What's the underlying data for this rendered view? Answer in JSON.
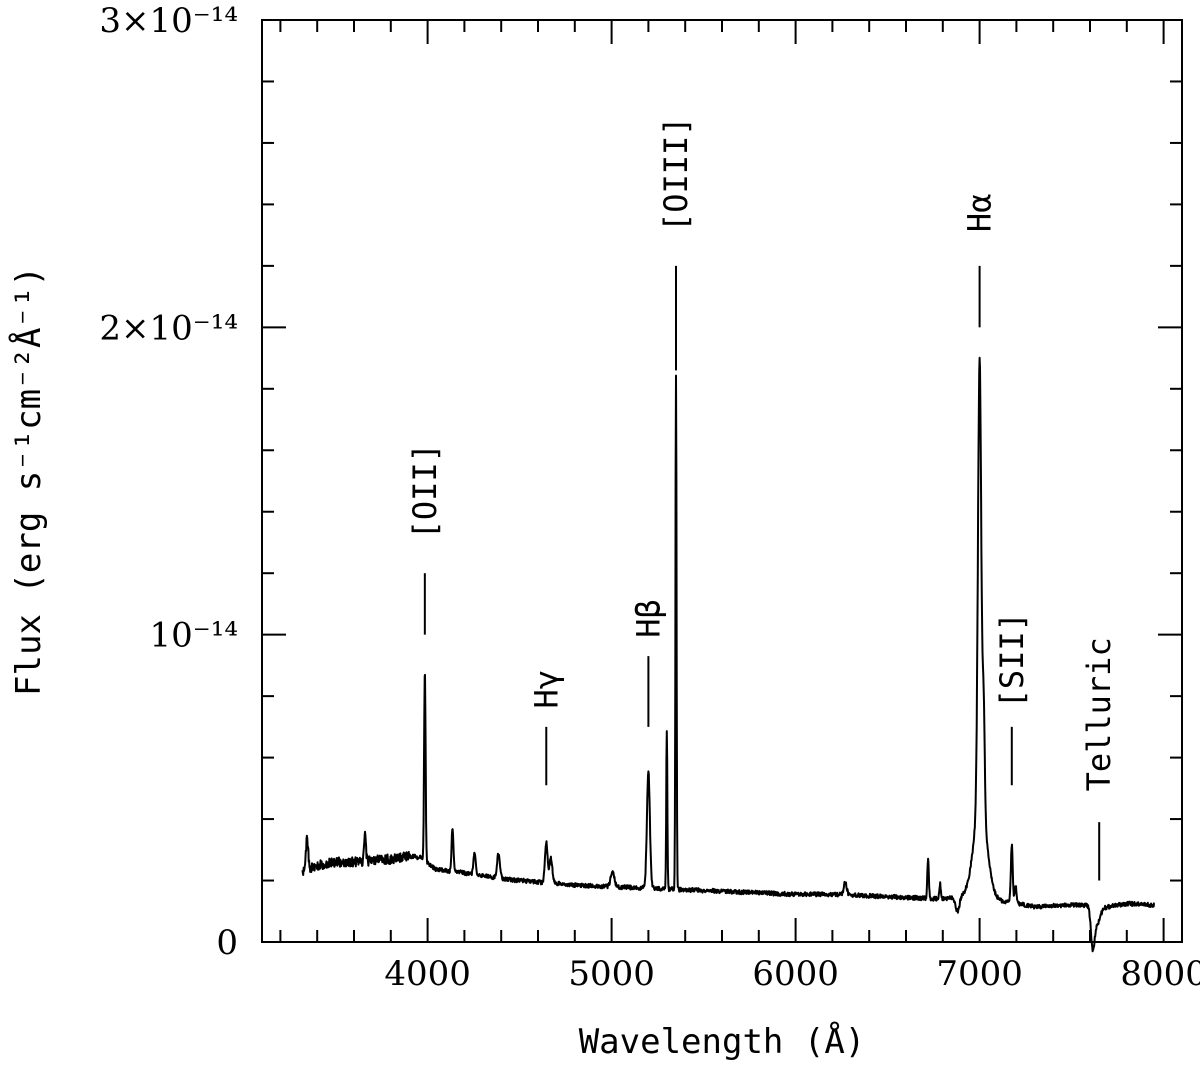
{
  "chart_data": {
    "type": "line",
    "title": "",
    "xlabel": "Wavelength (Å)",
    "ylabel": "Flux (erg s⁻¹cm⁻²Å⁻¹)",
    "xlim": [
      3100,
      8100
    ],
    "ylim": [
      0,
      3e-14
    ],
    "grid": false,
    "x_ticks": [
      {
        "value": 4000,
        "label": "4000"
      },
      {
        "value": 5000,
        "label": "5000"
      },
      {
        "value": 6000,
        "label": "6000"
      },
      {
        "value": 7000,
        "label": "7000"
      },
      {
        "value": 8000,
        "label": "8000"
      }
    ],
    "y_ticks": [
      {
        "value": 0,
        "label": "0"
      },
      {
        "value": 1e-14,
        "label": "10⁻¹⁴"
      },
      {
        "value": 2e-14,
        "label": "2×10⁻¹⁴"
      },
      {
        "value": 3e-14,
        "label": "3×10⁻¹⁴"
      }
    ],
    "x_minor_step": 200,
    "y_minor_step": 2e-15,
    "series": [
      {
        "continuum": [
          [
            3320,
            2.3e-15
          ],
          [
            3400,
            2.5e-15
          ],
          [
            3500,
            2.6e-15
          ],
          [
            3600,
            2.6e-15
          ],
          [
            3700,
            2.65e-15
          ],
          [
            3800,
            2.7e-15
          ],
          [
            3900,
            2.8e-15
          ],
          [
            3960,
            2.75e-15
          ],
          [
            4050,
            2.35e-15
          ],
          [
            4200,
            2.25e-15
          ],
          [
            4400,
            2.05e-15
          ],
          [
            4600,
            1.95e-15
          ],
          [
            4800,
            1.85e-15
          ],
          [
            5000,
            1.8e-15
          ],
          [
            5200,
            1.75e-15
          ],
          [
            5400,
            1.7e-15
          ],
          [
            5600,
            1.65e-15
          ],
          [
            5800,
            1.6e-15
          ],
          [
            6000,
            1.55e-15
          ],
          [
            6200,
            1.55e-15
          ],
          [
            6400,
            1.5e-15
          ],
          [
            6600,
            1.45e-15
          ],
          [
            6800,
            1.4e-15
          ],
          [
            6950,
            1.55e-15
          ],
          [
            7150,
            1.3e-15
          ],
          [
            7300,
            1.15e-15
          ],
          [
            7500,
            1.2e-15
          ],
          [
            7580,
            1.2e-15
          ],
          [
            7660,
            1.1e-15
          ],
          [
            7800,
            1.25e-15
          ],
          [
            7950,
            1.2e-15
          ]
        ],
        "lines": [
          {
            "center": 3345,
            "peak": 1e-15,
            "width": 6
          },
          {
            "center": 3660,
            "peak": 9e-16,
            "width": 5
          },
          {
            "center": 3985,
            "peak": 6.2e-15,
            "width": 4
          },
          {
            "center": 4135,
            "peak": 1.4e-15,
            "width": 5
          },
          {
            "center": 4255,
            "peak": 7e-16,
            "width": 6
          },
          {
            "center": 4385,
            "peak": 8e-16,
            "width": 8
          },
          {
            "center": 4645,
            "peak": 1.3e-15,
            "width": 7
          },
          {
            "center": 4670,
            "peak": 8e-16,
            "width": 8
          },
          {
            "center": 5005,
            "peak": 5e-16,
            "width": 10
          },
          {
            "center": 5200,
            "peak": 3.8e-15,
            "width": 8
          },
          {
            "center": 5300,
            "peak": 5.2e-15,
            "width": 3
          },
          {
            "center": 5350,
            "peak": 1.67e-14,
            "width": 3
          },
          {
            "center": 6270,
            "peak": 4e-16,
            "width": 8
          },
          {
            "center": 6720,
            "peak": 1.3e-15,
            "width": 4
          },
          {
            "center": 6785,
            "peak": 5e-16,
            "width": 4
          },
          {
            "center": 7000,
            "peak": 1.45e-14,
            "width": 9
          },
          {
            "center": 7005,
            "peak": 3e-15,
            "width": 35
          },
          {
            "center": 7022,
            "peak": 3.5e-15,
            "width": 6
          },
          {
            "center": 7175,
            "peak": 1.9e-15,
            "width": 5
          },
          {
            "center": 7195,
            "peak": 6e-16,
            "width": 5
          }
        ],
        "absorptions": [
          {
            "center": 6880,
            "depth": 5e-16,
            "width": 10
          },
          {
            "center": 7615,
            "depth": 1.3e-15,
            "width": 10
          },
          {
            "center": 7640,
            "depth": 5e-16,
            "width": 15
          }
        ]
      }
    ],
    "annotations": [
      {
        "label": "[OII]",
        "x": 3985,
        "tick_y": [
          1e-14,
          1.2e-14
        ],
        "label_y": 1.31e-14
      },
      {
        "label": "Hγ",
        "x": 4645,
        "tick_y": [
          5.1e-15,
          7e-15
        ],
        "label_y": 7.6e-15
      },
      {
        "label": "Hβ",
        "x": 5200,
        "tick_y": [
          7e-15,
          9.3e-15
        ],
        "label_y": 9.9e-15
      },
      {
        "label": "[OIII]",
        "x": 5350,
        "tick_y": [
          1.86e-14,
          2.2e-14
        ],
        "label_y": 2.31e-14
      },
      {
        "label": "Hα",
        "x": 7000,
        "tick_y": [
          2e-14,
          2.2e-14
        ],
        "label_y": 2.31e-14
      },
      {
        "label": "[SII]",
        "x": 7175,
        "tick_y": [
          5.1e-15,
          7e-15
        ],
        "label_y": 7.6e-15
      },
      {
        "label": "Telluric",
        "x": 7650,
        "tick_y": [
          2e-15,
          3.9e-15
        ],
        "label_y": 4.9e-15
      }
    ]
  }
}
